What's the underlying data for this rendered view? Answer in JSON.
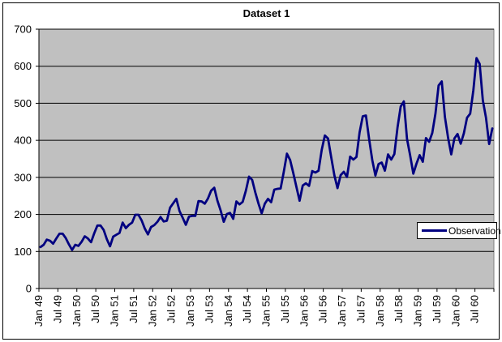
{
  "chart_data": {
    "type": "line",
    "title": "Dataset 1",
    "xlabel": "",
    "ylabel": "",
    "ylim": [
      0,
      700
    ],
    "y_tick_labels": [
      "0",
      "100",
      "200",
      "300",
      "400",
      "500",
      "600",
      "700"
    ],
    "x_tick_labels": [
      "Jan 49",
      "Jul 49",
      "Jan 50",
      "Jul 50",
      "Jan 51",
      "Jul 51",
      "Jan 52",
      "Jul 52",
      "Jan 53",
      "Jul 53",
      "Jan 54",
      "Jul 54",
      "Jan 55",
      "Jul 55",
      "Jan 56",
      "Jul 56",
      "Jan 57",
      "Jul 57",
      "Jan 58",
      "Jul 58",
      "Jan 59",
      "Jul 59",
      "Jan 60",
      "Jul 60"
    ],
    "x_points_per_tick": 6,
    "grid": "horizontal-major",
    "legend_position": "right-inside",
    "legend": {
      "label": "Observation"
    },
    "series": [
      {
        "name": "Observation",
        "color": "#000080",
        "values": [
          112,
          118,
          132,
          129,
          121,
          135,
          148,
          148,
          136,
          119,
          104,
          118,
          115,
          126,
          141,
          135,
          125,
          149,
          170,
          170,
          158,
          133,
          114,
          140,
          145,
          150,
          178,
          163,
          172,
          178,
          199,
          199,
          184,
          162,
          146,
          166,
          171,
          180,
          193,
          181,
          183,
          218,
          230,
          242,
          209,
          191,
          172,
          194,
          196,
          196,
          236,
          235,
          229,
          243,
          264,
          272,
          237,
          211,
          180,
          201,
          204,
          188,
          235,
          227,
          234,
          264,
          302,
          293,
          259,
          229,
          203,
          229,
          242,
          233,
          267,
          269,
          270,
          315,
          364,
          347,
          312,
          274,
          237,
          278,
          284,
          277,
          317,
          313,
          318,
          374,
          413,
          405,
          355,
          306,
          271,
          306,
          315,
          301,
          356,
          348,
          355,
          422,
          465,
          467,
          404,
          347,
          305,
          336,
          340,
          318,
          362,
          348,
          363,
          435,
          491,
          505,
          404,
          359,
          310,
          337,
          360,
          342,
          406,
          396,
          420,
          472,
          548,
          559,
          463,
          407,
          362,
          405,
          417,
          391,
          419,
          461,
          472,
          535,
          622,
          606,
          508,
          461,
          390,
          432
        ]
      }
    ],
    "colors": {
      "background": "#FFFFFF",
      "plot_bg": "#C0C0C0",
      "plot_border": "#808080",
      "gridline": "#000000",
      "axis": "#000000",
      "text": "#000000",
      "series": "#000080"
    }
  }
}
